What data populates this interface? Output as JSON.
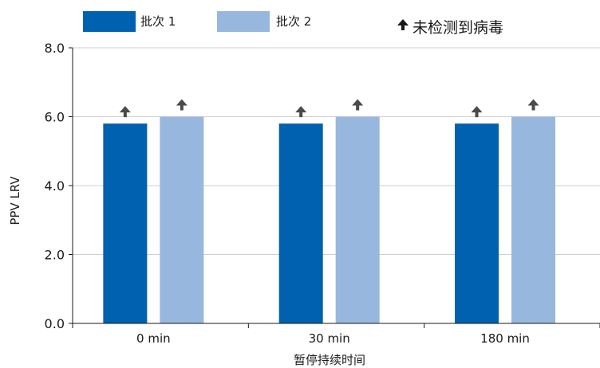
{
  "chart_data": {
    "type": "bar",
    "title": "",
    "xlabel": "暂停持续时间",
    "ylabel": "PPV LRV",
    "ylim": [
      0,
      8
    ],
    "yticks": [
      "0.0",
      "2.0",
      "4.0",
      "6.0",
      "8.0"
    ],
    "categories": [
      "0 min",
      "30 min",
      "180 min"
    ],
    "series": [
      {
        "name": "批次 1",
        "values": [
          5.8,
          5.8,
          5.8
        ],
        "color": "#0061b0"
      },
      {
        "name": "批次 2",
        "values": [
          6.0,
          6.0,
          6.0
        ],
        "color": "#98b7df"
      }
    ],
    "marker_note": "未检测到病毒",
    "marker_color": "#4a4a4a",
    "legend_position": "top",
    "grid": "horizontal"
  }
}
